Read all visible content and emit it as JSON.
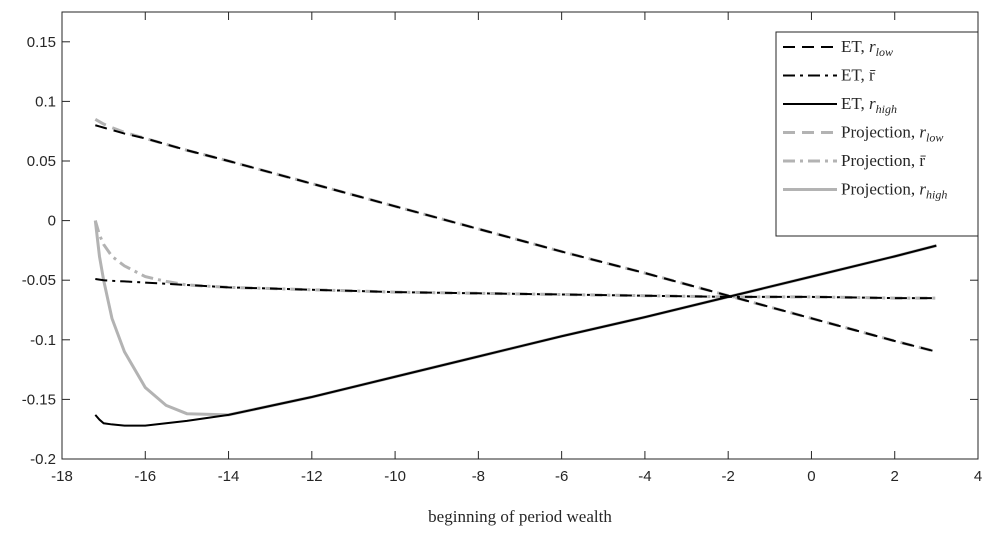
{
  "chart_data": {
    "type": "line",
    "x_label": "beginning of period wealth",
    "x": [
      -17.2,
      -17.1,
      -17,
      -16.8,
      -16.5,
      -16,
      -15.5,
      -15,
      -14,
      -12,
      -10,
      -8,
      -6,
      -4,
      -2,
      0,
      2,
      3
    ],
    "xlim": [
      -18,
      4
    ],
    "xticks": [
      -18,
      -16,
      -14,
      -12,
      -10,
      -8,
      -6,
      -4,
      -2,
      0,
      2,
      4
    ],
    "ylim": [
      -0.2,
      0.175
    ],
    "yticks": [
      -0.2,
      -0.15,
      -0.1,
      -0.05,
      0,
      0.05,
      0.1,
      0.15
    ],
    "series": [
      {
        "name": "ET, r_low",
        "color": "#000000",
        "dash": "dashed",
        "values": [
          0.08,
          0.079,
          0.078,
          0.076,
          0.073,
          0.069,
          0.064,
          0.059,
          0.05,
          0.031,
          0.012,
          -0.007,
          -0.026,
          -0.044,
          -0.063,
          -0.082,
          -0.101,
          -0.11
        ]
      },
      {
        "name": "ET, r̄",
        "color": "#000000",
        "dash": "dashdot",
        "values": [
          -0.049,
          -0.0495,
          -0.05,
          -0.0505,
          -0.051,
          -0.052,
          -0.053,
          -0.054,
          -0.056,
          -0.058,
          -0.06,
          -0.061,
          -0.062,
          -0.063,
          -0.064,
          -0.064,
          -0.065,
          -0.065
        ]
      },
      {
        "name": "ET, r_high",
        "color": "#000000",
        "dash": "solid",
        "values": [
          -0.163,
          -0.167,
          -0.17,
          -0.171,
          -0.172,
          -0.172,
          -0.17,
          -0.168,
          -0.163,
          -0.148,
          -0.131,
          -0.114,
          -0.097,
          -0.081,
          -0.064,
          -0.047,
          -0.03,
          -0.021
        ]
      },
      {
        "name": "Projection, r_low",
        "color": "#b3b3b3",
        "dash": "dashed",
        "values": [
          0.085,
          0.083,
          0.081,
          0.078,
          0.074,
          0.069,
          0.064,
          0.059,
          0.05,
          0.031,
          0.012,
          -0.007,
          -0.026,
          -0.044,
          -0.063,
          -0.082,
          -0.101,
          -0.11
        ]
      },
      {
        "name": "Projection, r̄",
        "color": "#b3b3b3",
        "dash": "dashdot",
        "values": [
          0,
          -0.012,
          -0.02,
          -0.03,
          -0.038,
          -0.047,
          -0.051,
          -0.054,
          -0.056,
          -0.058,
          -0.06,
          -0.061,
          -0.062,
          -0.063,
          -0.064,
          -0.064,
          -0.065,
          -0.065
        ]
      },
      {
        "name": "Projection, r_high",
        "color": "#b3b3b3",
        "dash": "solid",
        "values": [
          0,
          -0.03,
          -0.05,
          -0.082,
          -0.11,
          -0.14,
          -0.155,
          -0.162,
          -0.163,
          -0.148,
          -0.131,
          -0.114,
          -0.097,
          -0.081,
          -0.064,
          -0.047,
          -0.03,
          -0.021
        ]
      }
    ]
  }
}
